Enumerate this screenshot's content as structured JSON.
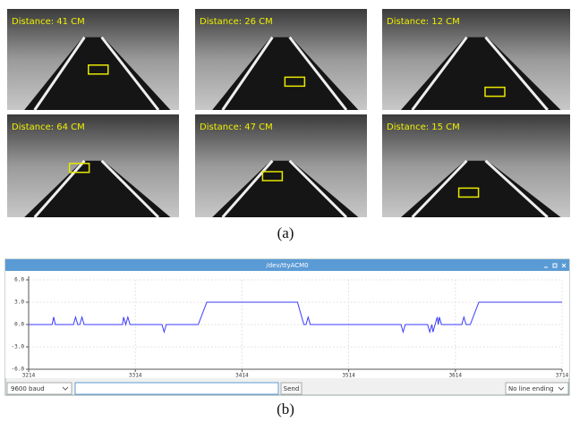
{
  "panel_a": {
    "images": [
      {
        "label": "Distance: 41 CM"
      },
      {
        "label": "Distance: 26 CM"
      },
      {
        "label": "Distance: 12 CM"
      },
      {
        "label": "Distance: 64 CM"
      },
      {
        "label": "Distance: 47 CM"
      },
      {
        "label": "Distance: 15 CM"
      }
    ],
    "caption": "(a)"
  },
  "panel_b": {
    "window_title": "/dev/ttyACM0",
    "baud": "9600 baud",
    "send": "Send",
    "line_ending": "No line ending",
    "caption": "(b)"
  },
  "chart_data": {
    "type": "line",
    "x": [
      3214,
      3236,
      3237.5,
      3239,
      3256,
      3258,
      3260,
      3262,
      3264,
      3266,
      3302,
      3303,
      3305,
      3307,
      3309,
      3339,
      3341,
      3343,
      3373,
      3381,
      3466,
      3472,
      3474,
      3476,
      3478,
      3563,
      3565,
      3567,
      3588,
      3590,
      3592,
      3593,
      3595,
      3597,
      3598,
      3599,
      3601,
      3620,
      3622,
      3624,
      3628,
      3636,
      3714
    ],
    "series": [
      {
        "color": "#3a3aff",
        "values": [
          0,
          0,
          1,
          0,
          0,
          1,
          0,
          0,
          1,
          0,
          0,
          1,
          0,
          1,
          0,
          0,
          -1,
          0,
          0,
          3,
          3,
          0,
          0,
          1,
          0,
          0,
          -1,
          0,
          0,
          -1,
          0,
          -1,
          0,
          1,
          0,
          1,
          0,
          0,
          1,
          0,
          0,
          3,
          3
        ]
      }
    ],
    "xlim": [
      3214,
      3714
    ],
    "xticks": [
      3214,
      3314,
      3414,
      3514,
      3614,
      3714
    ],
    "ylim": [
      -6,
      6
    ],
    "yticks": [
      {
        "value": 6,
        "label": "6.0"
      },
      {
        "value": 3,
        "label": "3.0"
      },
      {
        "value": 0,
        "label": "0.0"
      },
      {
        "value": -3,
        "label": "-3.0"
      },
      {
        "value": -6,
        "label": "-6.0"
      }
    ],
    "grid": true
  }
}
